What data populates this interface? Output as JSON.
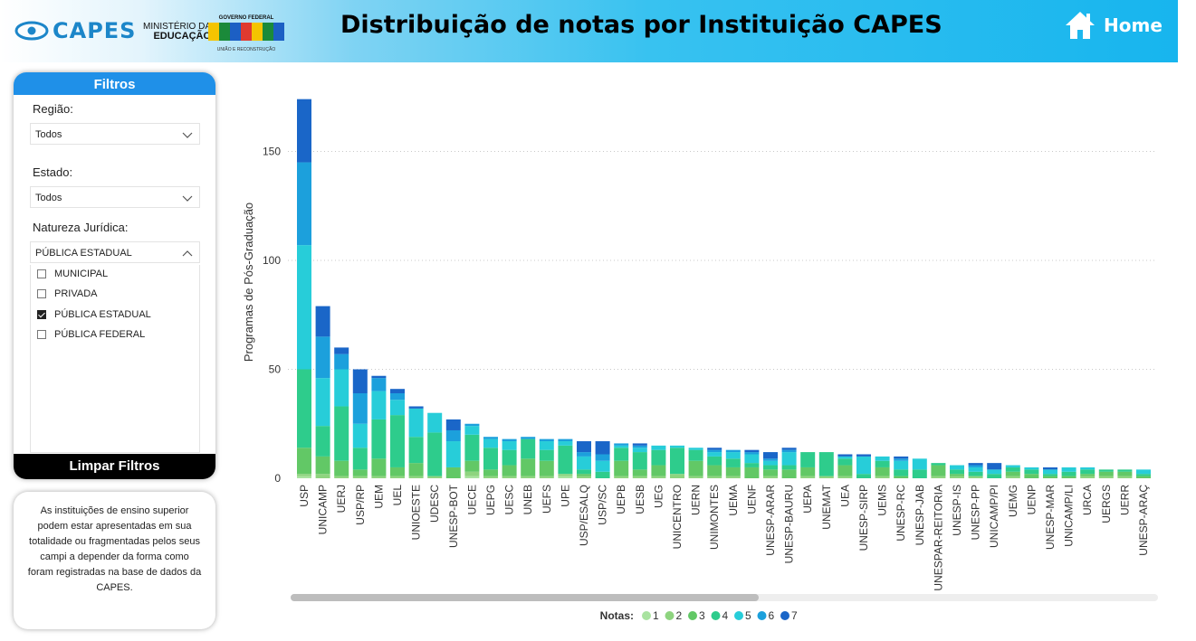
{
  "header": {
    "capes_logo": "CAPES",
    "mec_line1": "MINISTÉRIO DA",
    "mec_line2": "EDUCAÇÃO",
    "gov_top": "GOVERNO FEDERAL",
    "gov_bottom": "UNIÃO E RECONSTRUÇÃO",
    "title": "Distribuição de notas por Instituição CAPES",
    "home_label": "Home",
    "home_icon": "home-icon"
  },
  "filters": {
    "title": "Filtros",
    "regiao_label": "Região:",
    "regiao_value": "Todos",
    "estado_label": "Estado:",
    "estado_value": "Todos",
    "natureza_label": "Natureza Jurídica:",
    "natureza_value": "PÚBLICA ESTADUAL",
    "natureza_options": [
      {
        "label": "MUNICIPAL",
        "checked": false
      },
      {
        "label": "PRIVADA",
        "checked": false
      },
      {
        "label": "PÚBLICA ESTADUAL",
        "checked": true
      },
      {
        "label": "PÚBLICA FEDERAL",
        "checked": false
      }
    ],
    "clear_label": "Limpar Filtros"
  },
  "note": {
    "text": "As instituições de ensino superior podem estar apresentadas em sua totalidade ou fragmentadas pelos seus campi a depender da forma como foram registradas na base de dados da CAPES."
  },
  "colors": {
    "header_accent": "#17b5ee",
    "filters_head": "#1f90e8",
    "nota_1": "#a9e3a0",
    "nota_2": "#8ed47f",
    "nota_3": "#62c866",
    "nota_4": "#2ecc8c",
    "nota_5": "#27cdd9",
    "nota_6": "#1ca0dc",
    "nota_7": "#1a66c8"
  },
  "chart_data": {
    "type": "bar",
    "stacked": true,
    "ylabel": "Programas de Pós-Graduação",
    "xlabel": "",
    "ylim": [
      0,
      175
    ],
    "yticks": [
      0,
      50,
      100,
      150
    ],
    "grid": true,
    "legend_title": "Notas:",
    "legend_placement": "bottom",
    "categories": [
      "USP",
      "UNICAMP",
      "UERJ",
      "USP/RP",
      "UEM",
      "UEL",
      "UNIOESTE",
      "UDESC",
      "UNESP-BOT",
      "UECE",
      "UEPG",
      "UESC",
      "UNEB",
      "UEFS",
      "UPE",
      "USP/ESALQ",
      "USP/SC",
      "UEPB",
      "UESB",
      "UEG",
      "UNICENTRO",
      "UERN",
      "UNIMONTES",
      "UEMA",
      "UENF",
      "UNESP-ARAR",
      "UNESP-BAURU",
      "UEPA",
      "UNEMAT",
      "UEA",
      "UNESP-SIRP",
      "UEMS",
      "UNESP-RC",
      "UNESP-JAB",
      "UNESPAR-REITORIA",
      "UNESP-IS",
      "UNESP-PP",
      "UNICAMP/PI",
      "UEMG",
      "UENP",
      "UNESP-MAR",
      "UNICAMP/LI",
      "URCA",
      "UERGS",
      "UERR",
      "UNESP-ARAÇ"
    ],
    "series": [
      {
        "name": "1",
        "values": [
          1,
          0,
          0,
          0,
          0,
          0,
          0,
          0,
          0,
          1,
          0,
          0,
          0,
          0,
          1,
          0,
          0,
          0,
          0,
          0,
          0,
          0,
          0,
          0,
          0,
          0,
          0,
          0,
          0,
          0,
          0,
          0,
          0,
          0,
          0,
          0,
          0,
          0,
          0,
          0,
          0,
          0,
          0,
          0,
          0,
          0
        ]
      },
      {
        "name": "2",
        "values": [
          1,
          2,
          1,
          1,
          1,
          1,
          1,
          1,
          0,
          2,
          1,
          1,
          1,
          1,
          1,
          1,
          0,
          1,
          1,
          1,
          2,
          1,
          1,
          1,
          0,
          1,
          0,
          1,
          1,
          1,
          0,
          1,
          0,
          0,
          1,
          1,
          1,
          0,
          1,
          0,
          0,
          0,
          1,
          1,
          1,
          0
        ]
      },
      {
        "name": "3",
        "values": [
          12,
          8,
          7,
          3,
          8,
          4,
          6,
          0,
          5,
          5,
          3,
          5,
          8,
          7,
          0,
          1,
          0,
          7,
          3,
          5,
          0,
          7,
          5,
          4,
          5,
          3,
          4,
          4,
          0,
          5,
          0,
          4,
          1,
          0,
          5,
          1,
          0,
          0,
          2,
          2,
          1,
          1,
          1,
          2,
          2,
          1
        ]
      },
      {
        "name": "4",
        "values": [
          36,
          14,
          25,
          10,
          18,
          24,
          12,
          20,
          0,
          12,
          10,
          7,
          9,
          5,
          13,
          2,
          3,
          6,
          8,
          7,
          12,
          5,
          4,
          4,
          2,
          2,
          2,
          7,
          11,
          3,
          2,
          3,
          3,
          4,
          1,
          2,
          2,
          2,
          2,
          2,
          1,
          2,
          2,
          1,
          1,
          1
        ]
      },
      {
        "name": "5",
        "values": [
          57,
          22,
          17,
          11,
          13,
          7,
          13,
          9,
          12,
          4,
          4,
          4,
          0,
          4,
          2,
          6,
          5,
          1,
          2,
          2,
          1,
          1,
          2,
          3,
          4,
          2,
          6,
          0,
          0,
          1,
          8,
          2,
          4,
          5,
          0,
          2,
          2,
          2,
          1,
          1,
          2,
          2,
          1,
          0,
          0,
          2
        ]
      },
      {
        "name": "6",
        "values": [
          38,
          19,
          7,
          14,
          6,
          3,
          0,
          0,
          5,
          1,
          1,
          1,
          1,
          1,
          1,
          2,
          3,
          1,
          1,
          0,
          0,
          0,
          1,
          1,
          1,
          1,
          1,
          0,
          0,
          0,
          0,
          0,
          1,
          0,
          0,
          0,
          1,
          0,
          0,
          0,
          0,
          0,
          0,
          0,
          0,
          0
        ]
      },
      {
        "name": "7",
        "values": [
          29,
          14,
          3,
          11,
          1,
          2,
          1,
          0,
          5,
          0,
          0,
          0,
          0,
          0,
          0,
          5,
          6,
          0,
          1,
          0,
          0,
          0,
          1,
          0,
          1,
          3,
          1,
          0,
          0,
          1,
          1,
          0,
          1,
          0,
          0,
          0,
          1,
          3,
          0,
          0,
          1,
          0,
          0,
          0,
          0,
          0
        ]
      }
    ]
  }
}
